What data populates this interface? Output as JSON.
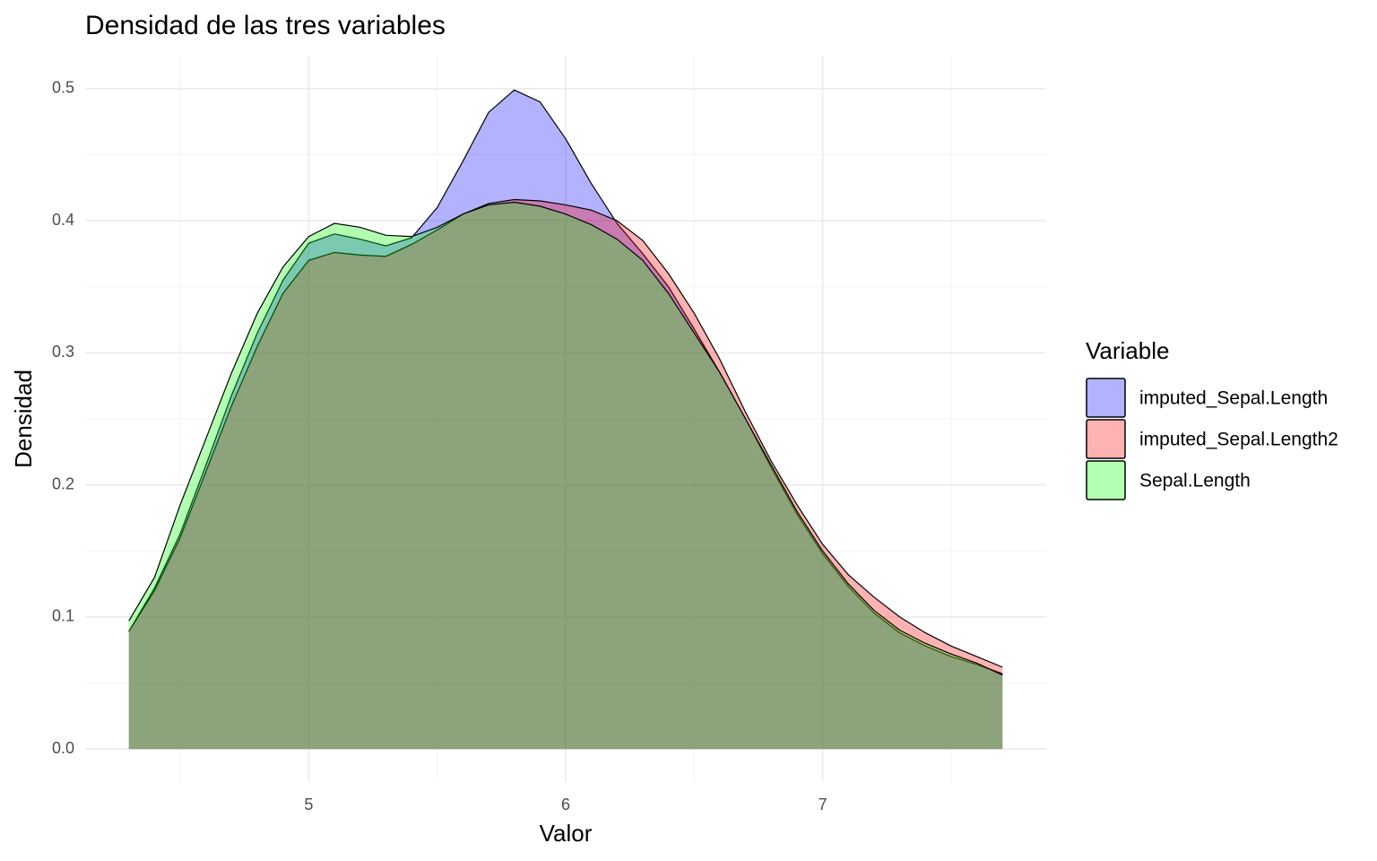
{
  "chart_data": {
    "type": "density",
    "title": "Densidad de las tres variables",
    "x_label": "Valor",
    "y_label": "Densidad",
    "legend_title": "Variable",
    "legend_position": "right",
    "x": [
      4.3,
      4.4,
      4.5,
      4.6,
      4.7,
      4.8,
      4.9,
      5.0,
      5.1,
      5.2,
      5.3,
      5.4,
      5.5,
      5.6,
      5.7,
      5.8,
      5.9,
      6.0,
      6.1,
      6.2,
      6.3,
      6.4,
      6.5,
      6.6,
      6.7,
      6.8,
      6.9,
      7.0,
      7.1,
      7.2,
      7.3,
      7.4,
      7.5,
      7.6,
      7.7
    ],
    "series": [
      {
        "name": "imputed_Sepal.Length",
        "color": "#0000ff",
        "values": [
          0.089,
          0.122,
          0.163,
          0.215,
          0.268,
          0.315,
          0.355,
          0.383,
          0.39,
          0.386,
          0.381,
          0.387,
          0.41,
          0.445,
          0.482,
          0.499,
          0.49,
          0.462,
          0.428,
          0.398,
          0.375,
          0.35,
          0.318,
          0.285,
          0.25,
          0.213,
          0.178,
          0.148,
          0.123,
          0.103,
          0.088,
          0.078,
          0.07,
          0.064,
          0.057
        ]
      },
      {
        "name": "imputed_Sepal.Length2",
        "color": "#ff0000",
        "values": [
          0.089,
          0.12,
          0.16,
          0.21,
          0.26,
          0.305,
          0.345,
          0.37,
          0.376,
          0.374,
          0.373,
          0.382,
          0.393,
          0.405,
          0.413,
          0.416,
          0.415,
          0.412,
          0.408,
          0.4,
          0.385,
          0.36,
          0.33,
          0.295,
          0.255,
          0.218,
          0.185,
          0.155,
          0.132,
          0.115,
          0.1,
          0.088,
          0.078,
          0.07,
          0.062
        ]
      },
      {
        "name": "Sepal.Length",
        "color": "#00ff00",
        "values": [
          0.097,
          0.13,
          0.185,
          0.235,
          0.285,
          0.33,
          0.365,
          0.388,
          0.398,
          0.395,
          0.389,
          0.388,
          0.395,
          0.405,
          0.412,
          0.414,
          0.411,
          0.405,
          0.397,
          0.386,
          0.37,
          0.345,
          0.315,
          0.285,
          0.25,
          0.215,
          0.18,
          0.15,
          0.125,
          0.105,
          0.09,
          0.08,
          0.072,
          0.065,
          0.056
        ]
      }
    ],
    "fill_opacity": 0.3,
    "xlim": [
      4.13,
      7.87
    ],
    "xticks": [
      5,
      6,
      7
    ],
    "x_minor_grid": [
      4.5,
      5.5,
      6.5,
      7.5
    ],
    "ylim": [
      -0.025,
      0.525
    ],
    "yticks": [
      {
        "value": 0,
        "label": "0.0"
      },
      0.1,
      0.2,
      0.3,
      0.4,
      0.5
    ],
    "y_minor_grid": [
      0.05,
      0.15,
      0.25,
      0.35,
      0.45
    ],
    "grid": true
  }
}
